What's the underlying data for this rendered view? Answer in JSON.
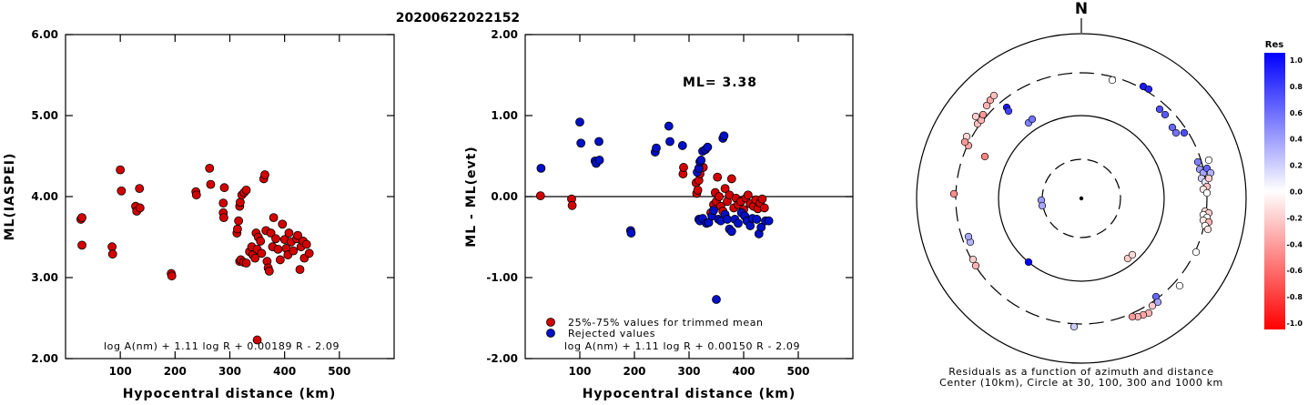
{
  "header": {
    "event_id": "20200622022152"
  },
  "chart_data": [
    {
      "type": "scatter",
      "xlabel": "Hypocentral distance (km)",
      "ylabel": "ML(IASPEI)",
      "xlim": [
        0,
        600
      ],
      "ylim": [
        2.0,
        6.0
      ],
      "x_ticks": [
        "100",
        "200",
        "300",
        "400",
        "500"
      ],
      "y_ticks": [
        "2.00",
        "3.00",
        "4.00",
        "5.00",
        "6.00"
      ],
      "formula": "log A(nm) + 1.11 log R + 0.00189 R - 2.09",
      "marker_color": "#d40000",
      "points": [
        [
          28,
          3.72
        ],
        [
          30,
          3.74
        ],
        [
          30,
          3.4
        ],
        [
          85,
          3.38
        ],
        [
          86,
          3.29
        ],
        [
          100,
          4.33
        ],
        [
          102,
          4.07
        ],
        [
          128,
          3.88
        ],
        [
          130,
          3.82
        ],
        [
          135,
          4.1
        ],
        [
          136,
          3.86
        ],
        [
          193,
          3.05
        ],
        [
          194,
          3.02
        ],
        [
          238,
          4.06
        ],
        [
          239,
          4.02
        ],
        [
          263,
          4.35
        ],
        [
          265,
          4.15
        ],
        [
          290,
          4.11
        ],
        [
          288,
          3.92
        ],
        [
          288,
          3.8
        ],
        [
          289,
          3.74
        ],
        [
          313,
          3.55
        ],
        [
          314,
          3.6
        ],
        [
          316,
          3.7
        ],
        [
          318,
          3.88
        ],
        [
          319,
          3.93
        ],
        [
          322,
          4.02
        ],
        [
          326,
          4.05
        ],
        [
          330,
          4.08
        ],
        [
          318,
          3.2
        ],
        [
          320,
          3.22
        ],
        [
          325,
          3.19
        ],
        [
          330,
          3.18
        ],
        [
          336,
          3.32
        ],
        [
          340,
          3.38
        ],
        [
          342,
          3.28
        ],
        [
          346,
          3.24
        ],
        [
          348,
          3.55
        ],
        [
          350,
          3.35
        ],
        [
          352,
          3.5
        ],
        [
          356,
          3.45
        ],
        [
          358,
          3.3
        ],
        [
          362,
          4.22
        ],
        [
          364,
          4.27
        ],
        [
          366,
          3.58
        ],
        [
          368,
          3.2
        ],
        [
          370,
          3.12
        ],
        [
          372,
          3.08
        ],
        [
          375,
          3.55
        ],
        [
          378,
          3.38
        ],
        [
          380,
          3.74
        ],
        [
          384,
          3.48
        ],
        [
          388,
          3.35
        ],
        [
          392,
          3.22
        ],
        [
          396,
          3.66
        ],
        [
          400,
          3.47
        ],
        [
          403,
          3.36
        ],
        [
          406,
          3.28
        ],
        [
          408,
          3.55
        ],
        [
          412,
          3.44
        ],
        [
          416,
          3.33
        ],
        [
          422,
          3.48
        ],
        [
          424,
          3.52
        ],
        [
          428,
          3.1
        ],
        [
          430,
          3.38
        ],
        [
          434,
          3.45
        ],
        [
          436,
          3.24
        ],
        [
          440,
          3.41
        ],
        [
          445,
          3.3
        ],
        [
          350,
          2.23
        ]
      ]
    },
    {
      "type": "scatter",
      "xlabel": "Hypocentral distance (km)",
      "ylabel": "ML - ML(evt)",
      "xlim": [
        0,
        600
      ],
      "ylim": [
        -2.0,
        2.0
      ],
      "x_ticks": [
        "100",
        "200",
        "300",
        "400",
        "500"
      ],
      "y_ticks": [
        "-2.00",
        "-1.00",
        "0.00",
        "1.00",
        "2.00"
      ],
      "annotation": "ML= 3.38",
      "formula": "log A(nm) + 1.11 log R + 0.00150 R - 2.09",
      "zero_line": 0.0,
      "legend": [
        {
          "label": "25%-75% values for trimmed mean",
          "color": "#d40000"
        },
        {
          "label": "Rejected values",
          "color": "#0010c8"
        }
      ],
      "series": [
        {
          "name": "25%-75% values for trimmed mean",
          "color": "#d40000",
          "points": [
            [
              28,
              0.01
            ],
            [
              85,
              -0.03
            ],
            [
              86,
              -0.11
            ],
            [
              289,
              0.28
            ],
            [
              290,
              0.36
            ],
            [
              313,
              0.17
            ],
            [
              314,
              0.04
            ],
            [
              316,
              0.08
            ],
            [
              318,
              0.2
            ],
            [
              320,
              0.28
            ],
            [
              326,
              0.36
            ],
            [
              340,
              -0.2
            ],
            [
              345,
              -0.1
            ],
            [
              348,
              0.05
            ],
            [
              350,
              -0.06
            ],
            [
              352,
              0.24
            ],
            [
              355,
              0.0
            ],
            [
              358,
              -0.12
            ],
            [
              362,
              -0.18
            ],
            [
              366,
              0.1
            ],
            [
              370,
              -0.06
            ],
            [
              374,
              0.02
            ],
            [
              378,
              0.22
            ],
            [
              382,
              -0.14
            ],
            [
              386,
              -0.02
            ],
            [
              390,
              -0.1
            ],
            [
              395,
              -0.06
            ],
            [
              400,
              -0.16
            ],
            [
              404,
              -0.02
            ],
            [
              408,
              0.02
            ],
            [
              412,
              -0.09
            ],
            [
              418,
              -0.12
            ],
            [
              422,
              -0.04
            ],
            [
              426,
              -0.15
            ],
            [
              430,
              -0.08
            ],
            [
              434,
              -0.03
            ],
            [
              438,
              -0.14
            ]
          ]
        },
        {
          "name": "Rejected values",
          "color": "#0010c8",
          "points": [
            [
              29,
              0.35
            ],
            [
              100,
              0.92
            ],
            [
              102,
              0.66
            ],
            [
              128,
              0.44
            ],
            [
              130,
              0.41
            ],
            [
              135,
              0.68
            ],
            [
              136,
              0.45
            ],
            [
              193,
              -0.42
            ],
            [
              194,
              -0.45
            ],
            [
              238,
              0.55
            ],
            [
              240,
              0.6
            ],
            [
              263,
              0.87
            ],
            [
              265,
              0.68
            ],
            [
              288,
              0.63
            ],
            [
              315,
              0.3
            ],
            [
              318,
              0.35
            ],
            [
              320,
              0.43
            ],
            [
              322,
              0.45
            ],
            [
              325,
              0.56
            ],
            [
              330,
              0.58
            ],
            [
              334,
              0.61
            ],
            [
              318,
              -0.28
            ],
            [
              320,
              -0.3
            ],
            [
              325,
              -0.27
            ],
            [
              332,
              -0.33
            ],
            [
              336,
              -0.32
            ],
            [
              342,
              -0.24
            ],
            [
              345,
              -0.17
            ],
            [
              350,
              -1.27
            ],
            [
              354,
              -0.28
            ],
            [
              358,
              -0.3
            ],
            [
              362,
              0.72
            ],
            [
              364,
              0.75
            ],
            [
              366,
              -0.22
            ],
            [
              370,
              -0.28
            ],
            [
              374,
              -0.4
            ],
            [
              378,
              -0.43
            ],
            [
              384,
              -0.28
            ],
            [
              390,
              -0.33
            ],
            [
              396,
              -0.2
            ],
            [
              402,
              -0.24
            ],
            [
              406,
              -0.3
            ],
            [
              412,
              -0.36
            ],
            [
              416,
              -0.27
            ],
            [
              424,
              -0.28
            ],
            [
              428,
              -0.46
            ],
            [
              432,
              -0.38
            ],
            [
              440,
              -0.3
            ],
            [
              446,
              -0.3
            ]
          ]
        }
      ]
    },
    {
      "type": "polar-scatter",
      "north_label": "N",
      "caption_line1": "Residuals as a function of azimuth and distance",
      "caption_line2": "Center (10km), Circle at 30, 100, 300 and 1000 km",
      "colorbar_title": "Res",
      "colorbar_ticks": [
        "1.0",
        "0.8",
        "0.6",
        "0.4",
        "0.2",
        "0.0",
        "-0.2",
        "-0.4",
        "-0.6",
        "-0.8",
        "-1.0"
      ],
      "points": [
        {
          "x": 1222,
          "y": 88,
          "r": 0.0
        },
        {
          "x": 1256,
          "y": 95,
          "r": 0.9
        },
        {
          "x": 1262,
          "y": 98,
          "r": 0.85
        },
        {
          "x": 1274,
          "y": 120,
          "r": 0.7
        },
        {
          "x": 1280,
          "y": 126,
          "r": 0.65
        },
        {
          "x": 1288,
          "y": 140,
          "r": 0.6
        },
        {
          "x": 1292,
          "y": 146,
          "r": 0.55
        },
        {
          "x": 1301,
          "y": 146,
          "r": 0.7
        },
        {
          "x": 1316,
          "y": 178,
          "r": 0.5
        },
        {
          "x": 1318,
          "y": 186,
          "r": 0.4
        },
        {
          "x": 1322,
          "y": 190,
          "r": 0.35
        },
        {
          "x": 1326,
          "y": 185,
          "r": 0.6
        },
        {
          "x": 1330,
          "y": 190,
          "r": 0.3
        },
        {
          "x": 1320,
          "y": 196,
          "r": 0.2
        },
        {
          "x": 1324,
          "y": 200,
          "r": 0.1
        },
        {
          "x": 1328,
          "y": 196,
          "r": -0.2
        },
        {
          "x": 1326,
          "y": 205,
          "r": -0.25
        },
        {
          "x": 1322,
          "y": 208,
          "r": -0.1
        },
        {
          "x": 1326,
          "y": 212,
          "r": 0.0
        },
        {
          "x": 1328,
          "y": 176,
          "r": 0.0
        },
        {
          "x": 1324,
          "y": 232,
          "r": -0.15
        },
        {
          "x": 1328,
          "y": 234,
          "r": -0.2
        },
        {
          "x": 1322,
          "y": 236,
          "r": 0.0
        },
        {
          "x": 1326,
          "y": 239,
          "r": 0.0
        },
        {
          "x": 1322,
          "y": 242,
          "r": -0.1
        },
        {
          "x": 1328,
          "y": 244,
          "r": -0.3
        },
        {
          "x": 1324,
          "y": 248,
          "r": 0.0
        },
        {
          "x": 1327,
          "y": 252,
          "r": -0.1
        },
        {
          "x": 1314,
          "y": 277,
          "r": 0.0
        },
        {
          "x": 1296,
          "y": 314,
          "r": 0.0
        },
        {
          "x": 1270,
          "y": 326,
          "r": 0.6
        },
        {
          "x": 1272,
          "y": 332,
          "r": 0.35
        },
        {
          "x": 1266,
          "y": 336,
          "r": -0.2
        },
        {
          "x": 1262,
          "y": 344,
          "r": -0.3
        },
        {
          "x": 1256,
          "y": 346,
          "r": -0.35
        },
        {
          "x": 1250,
          "y": 348,
          "r": -0.3
        },
        {
          "x": 1244,
          "y": 348,
          "r": -0.4
        },
        {
          "x": 1180,
          "y": 359,
          "r": 0.2
        },
        {
          "x": 1239,
          "y": 284,
          "r": -0.2
        },
        {
          "x": 1244,
          "y": 280,
          "r": -0.15
        },
        {
          "x": 1130,
          "y": 288,
          "r": 1.0
        },
        {
          "x": 1072,
          "y": 292,
          "r": -0.3
        },
        {
          "x": 1069,
          "y": 285,
          "r": -0.2
        },
        {
          "x": 1066,
          "y": 266,
          "r": 0.3
        },
        {
          "x": 1064,
          "y": 260,
          "r": 0.35
        },
        {
          "x": 1144,
          "y": 220,
          "r": 0.4
        },
        {
          "x": 1145,
          "y": 226,
          "r": 0.35
        },
        {
          "x": 1048,
          "y": 213,
          "r": -0.45
        },
        {
          "x": 1082,
          "y": 172,
          "r": -0.5
        },
        {
          "x": 1064,
          "y": 160,
          "r": -0.35
        },
        {
          "x": 1062,
          "y": 150,
          "r": -0.15
        },
        {
          "x": 1060,
          "y": 156,
          "r": -0.4
        },
        {
          "x": 1074,
          "y": 136,
          "r": -0.25
        },
        {
          "x": 1078,
          "y": 132,
          "r": -0.3
        },
        {
          "x": 1072,
          "y": 128,
          "r": -0.2
        },
        {
          "x": 1080,
          "y": 126,
          "r": -0.4
        },
        {
          "x": 1084,
          "y": 116,
          "r": -0.3
        },
        {
          "x": 1088,
          "y": 110,
          "r": -0.35
        },
        {
          "x": 1092,
          "y": 105,
          "r": -0.25
        },
        {
          "x": 1106,
          "y": 118,
          "r": 0.9
        },
        {
          "x": 1108,
          "y": 122,
          "r": 0.75
        },
        {
          "x": 1130,
          "y": 135,
          "r": 0.5
        },
        {
          "x": 1134,
          "y": 131,
          "r": 0.55
        }
      ]
    }
  ]
}
